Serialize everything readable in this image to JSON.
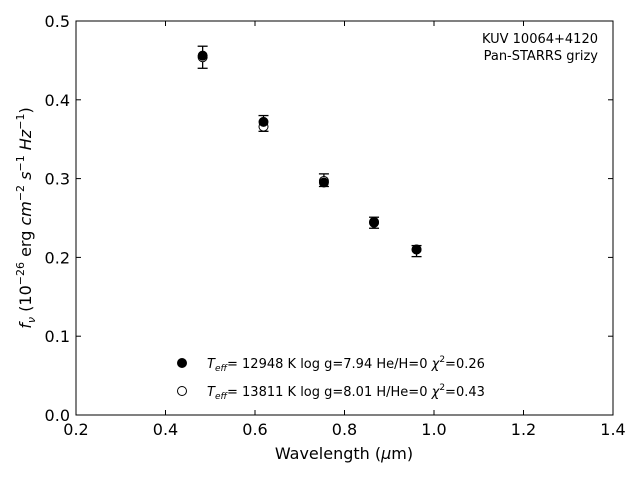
{
  "chart_data": {
    "type": "scatter",
    "xlabel": "Wavelength (μm)",
    "ylabel": "f_ν (10^-26 erg cm^-2 s^-1 Hz^-1)",
    "xlim": [
      0.2,
      1.4
    ],
    "ylim": [
      0.0,
      0.5
    ],
    "xticks": [
      "0.2",
      "0.4",
      "0.6",
      "0.8",
      "1.0",
      "1.2",
      "1.4"
    ],
    "yticks": [
      "0.0",
      "0.1",
      "0.2",
      "0.3",
      "0.4",
      "0.5"
    ],
    "grid": false,
    "legend_position": "bottom-center",
    "annotation": [
      "KUV 10064+4120",
      "Pan-STARRS grizy"
    ],
    "observed": {
      "x": [
        0.483,
        0.619,
        0.754,
        0.866,
        0.961
      ],
      "y": [
        0.454,
        0.37,
        0.298,
        0.244,
        0.208
      ],
      "yerr": [
        0.014,
        0.01,
        0.008,
        0.007,
        0.007
      ]
    },
    "series": [
      {
        "name": "Teff= 12948 K  log g=7.94  He/H=0  χ2=0.26",
        "marker": "filled-circle",
        "x": [
          0.483,
          0.619,
          0.754,
          0.866,
          0.961
        ],
        "y": [
          0.456,
          0.372,
          0.295,
          0.244,
          0.21
        ]
      },
      {
        "name": "Teff= 13811 K  log g=8.01  H/He=0  χ2=0.43",
        "marker": "open-circle",
        "x": [
          0.483,
          0.619,
          0.754,
          0.866,
          0.961
        ],
        "y": [
          0.454,
          0.366,
          0.297,
          0.245,
          0.21
        ]
      }
    ],
    "legend": [
      {
        "teff": "= 12948 K",
        "logg": "log g=7.94",
        "comp": "He/H=0",
        "chi": "=0.26"
      },
      {
        "teff": "= 13811 K",
        "logg": "log g=8.01",
        "comp": "H/He=0",
        "chi": "=0.43"
      }
    ]
  }
}
